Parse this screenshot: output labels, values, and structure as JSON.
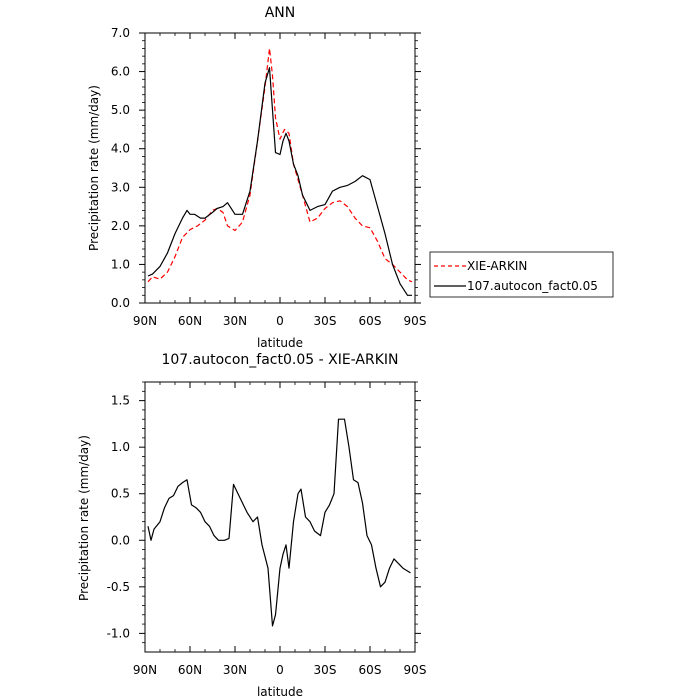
{
  "chart_data": [
    {
      "type": "line",
      "title": "ANN",
      "xlabel": "latitude",
      "ylabel": "Precipitation rate (mm/day)",
      "x_tick_labels": [
        "90N",
        "60N",
        "30N",
        "0",
        "30S",
        "60S",
        "90S"
      ],
      "x_tick_values": [
        -90,
        -60,
        -30,
        0,
        30,
        60,
        90
      ],
      "xlim": [
        -90,
        90
      ],
      "y_tick_labels": [
        "0.0",
        "1.0",
        "2.0",
        "3.0",
        "4.0",
        "5.0",
        "6.0",
        "7.0"
      ],
      "y_tick_values": [
        0,
        1,
        2,
        3,
        4,
        5,
        6,
        7
      ],
      "ylim": [
        0,
        7
      ],
      "grid": false,
      "legend_position": "right",
      "series": [
        {
          "name": "XIE-ARKIN",
          "color": "#ff0000",
          "dash": "dashed",
          "x": [
            -88,
            -85,
            -80,
            -75,
            -70,
            -65,
            -60,
            -55,
            -50,
            -45,
            -42,
            -38,
            -35,
            -30,
            -25,
            -20,
            -15,
            -10,
            -7,
            -5,
            -3,
            0,
            3,
            6,
            9,
            12,
            15,
            20,
            25,
            30,
            35,
            40,
            45,
            50,
            55,
            60,
            65,
            70,
            75,
            80,
            85,
            88
          ],
          "values": [
            0.55,
            0.68,
            0.62,
            0.8,
            1.2,
            1.7,
            1.9,
            2.0,
            2.15,
            2.4,
            2.45,
            2.35,
            2.0,
            1.88,
            2.1,
            2.8,
            4.2,
            5.6,
            6.6,
            5.9,
            4.8,
            4.25,
            4.5,
            4.4,
            3.6,
            3.2,
            2.8,
            2.1,
            2.2,
            2.45,
            2.6,
            2.65,
            2.5,
            2.2,
            2.0,
            1.95,
            1.6,
            1.15,
            1.0,
            0.8,
            0.6,
            0.55
          ]
        },
        {
          "name": "107.autocon_fact0.05",
          "color": "#000000",
          "dash": "solid",
          "x": [
            -88,
            -85,
            -80,
            -75,
            -70,
            -65,
            -62,
            -60,
            -57,
            -53,
            -50,
            -45,
            -42,
            -38,
            -35,
            -30,
            -25,
            -20,
            -15,
            -10,
            -7,
            -5,
            -3,
            0,
            2,
            4,
            6,
            9,
            12,
            15,
            20,
            25,
            30,
            35,
            40,
            45,
            50,
            55,
            60,
            65,
            70,
            75,
            80,
            85,
            88
          ],
          "values": [
            0.7,
            0.75,
            0.95,
            1.3,
            1.8,
            2.2,
            2.4,
            2.3,
            2.3,
            2.2,
            2.2,
            2.35,
            2.45,
            2.5,
            2.6,
            2.3,
            2.3,
            2.9,
            4.2,
            5.7,
            6.1,
            5.0,
            3.9,
            3.85,
            4.2,
            4.4,
            4.2,
            3.6,
            3.3,
            2.8,
            2.4,
            2.5,
            2.55,
            2.9,
            3.0,
            3.05,
            3.15,
            3.3,
            3.2,
            2.5,
            1.8,
            1.0,
            0.5,
            0.2,
            0.2
          ]
        }
      ]
    },
    {
      "type": "line",
      "title": "107.autocon_fact0.05 - XIE-ARKIN",
      "xlabel": "latitude",
      "ylabel": "Precipitation rate (mm/day)",
      "x_tick_labels": [
        "90N",
        "60N",
        "30N",
        "0",
        "30S",
        "60S",
        "90S"
      ],
      "x_tick_values": [
        -90,
        -60,
        -30,
        0,
        30,
        60,
        90
      ],
      "xlim": [
        -90,
        90
      ],
      "y_tick_labels": [
        "-1.0",
        "-0.5",
        "0.0",
        "0.5",
        "1.0",
        "1.5"
      ],
      "y_tick_values": [
        -1.0,
        -0.5,
        0.0,
        0.5,
        1.0,
        1.5
      ],
      "ylim": [
        -1.2,
        1.7
      ],
      "grid": false,
      "series": [
        {
          "color": "#000000",
          "dash": "solid",
          "x": [
            -88,
            -86,
            -84,
            -80,
            -77,
            -74,
            -71,
            -68,
            -65,
            -62,
            -59,
            -56,
            -53,
            -50,
            -47,
            -44,
            -41,
            -37,
            -34,
            -31,
            -28,
            -25,
            -22,
            -18,
            -15,
            -12,
            -8,
            -5,
            -3,
            0,
            2,
            4,
            6,
            9,
            12,
            14,
            17,
            20,
            23,
            27,
            30,
            33,
            36,
            39,
            43,
            46,
            49,
            52,
            55,
            58,
            61,
            64,
            67,
            70,
            73,
            76,
            79,
            82,
            85,
            87
          ],
          "values": [
            0.15,
            0.0,
            0.12,
            0.2,
            0.35,
            0.45,
            0.48,
            0.58,
            0.62,
            0.65,
            0.38,
            0.35,
            0.3,
            0.2,
            0.15,
            0.05,
            0.0,
            0.0,
            0.02,
            0.6,
            0.5,
            0.4,
            0.3,
            0.2,
            0.25,
            -0.05,
            -0.3,
            -0.92,
            -0.8,
            -0.3,
            -0.15,
            -0.05,
            -0.3,
            0.2,
            0.5,
            0.55,
            0.25,
            0.2,
            0.1,
            0.05,
            0.3,
            0.38,
            0.5,
            1.3,
            1.3,
            1.0,
            0.65,
            0.62,
            0.4,
            0.05,
            -0.05,
            -0.3,
            -0.5,
            -0.45,
            -0.3,
            -0.2,
            -0.25,
            -0.3,
            -0.33,
            -0.35
          ]
        }
      ]
    }
  ]
}
